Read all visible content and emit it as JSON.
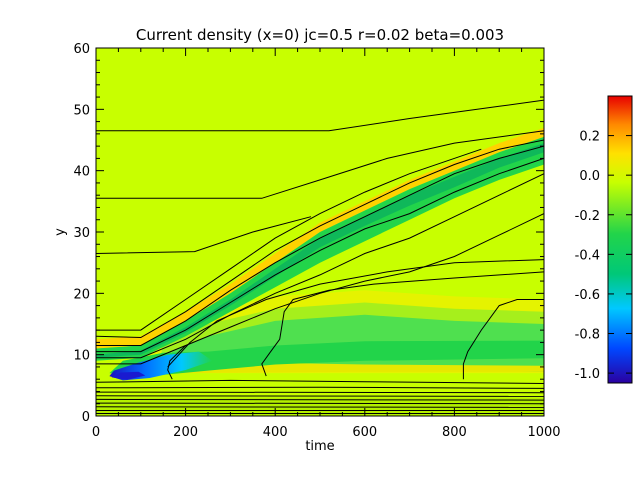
{
  "chart_data": {
    "type": "heatmap",
    "title": "Current density (x=0) jc=0.5 r=0.02 beta=0.003",
    "xlabel": "time",
    "ylabel": "y",
    "xlim": [
      0,
      1000
    ],
    "ylim": [
      0,
      60
    ],
    "x_ticks": [
      0,
      200,
      400,
      600,
      800,
      1000
    ],
    "y_ticks": [
      0,
      10,
      20,
      30,
      40,
      50,
      60
    ],
    "colorbar": {
      "range": [
        -1.05,
        0.4
      ],
      "ticks": [
        0.2,
        0.0,
        -0.2,
        -0.4,
        -0.6,
        -0.8,
        -1.0
      ],
      "tick_labels": [
        "0.2",
        "0.0",
        "-0.2",
        "-0.4",
        "-0.6",
        "-0.8",
        "-1.0"
      ],
      "colormap": [
        "#2a00a0",
        "#0047ff",
        "#00c8ff",
        "#00c878",
        "#22d44a",
        "#c8ff00",
        "#ffe100",
        "#ff8a00",
        "#e80000"
      ]
    },
    "background_value": 0.0,
    "colors": {
      "background": "#c8ff00",
      "contour": "#000000"
    },
    "grid": false,
    "features": [
      {
        "name": "upper current sheet (positive edge)",
        "t": [
          0,
          200,
          500,
          800,
          1000
        ],
        "y": [
          11.5,
          17,
          31,
          40,
          46.5
        ],
        "value": 0.1
      },
      {
        "name": "main negative sheet",
        "t": [
          0,
          200,
          500,
          800,
          1000
        ],
        "y": [
          10,
          15,
          28,
          38,
          43
        ],
        "value": -0.35
      },
      {
        "name": "lower negative band",
        "t": [
          0,
          200,
          500,
          800,
          1000
        ],
        "y": [
          8,
          8.5,
          9,
          9.3,
          9.5
        ],
        "value": -0.4
      },
      {
        "name": "initial strong negative core",
        "t": 50,
        "y": 6.5,
        "value": -1.0
      }
    ]
  }
}
